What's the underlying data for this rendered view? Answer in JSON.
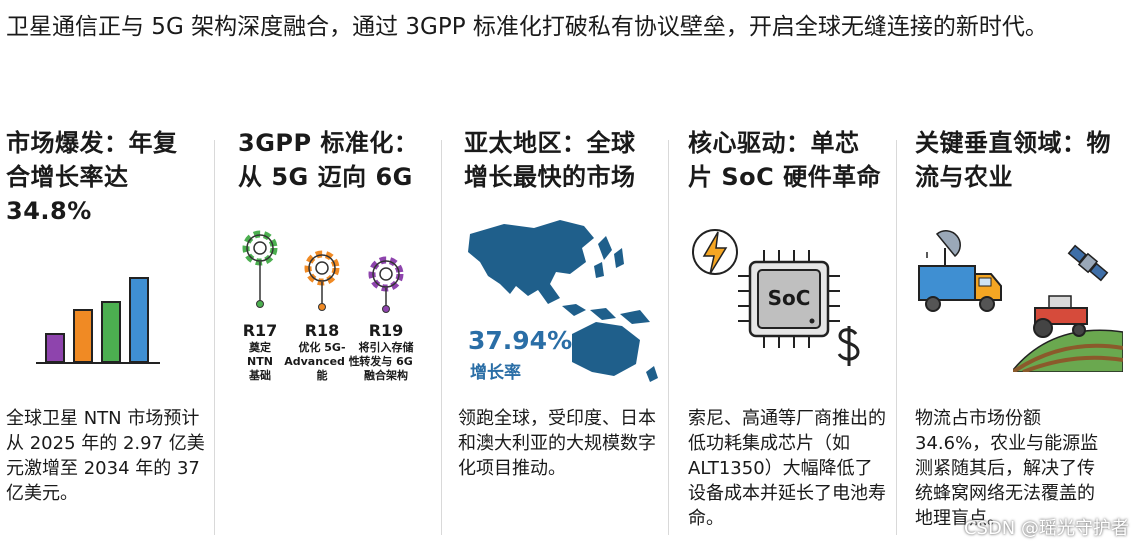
{
  "headline": "卫星通信正与 5G 架构深度融合，通过 3GPP 标准化打破私有协议壁垒，开启全球无缝连接的新时代。",
  "columns": [
    {
      "title": "市场爆发：年复合增长率达 34.8%",
      "text": "全球卫星 NTN 市场预计从 2025 年的 2.97 亿美元激增至 2034 年的 37 亿美元。"
    },
    {
      "title": "3GPP 标准化：从 5G 迈向 6G",
      "releases": [
        {
          "code": "R17",
          "desc": "奠定 NTN 基础",
          "color": "#4caf50"
        },
        {
          "code": "R18",
          "desc": "优化 5G-Advanced 性能",
          "color": "#f08a24"
        },
        {
          "code": "R19",
          "desc": "将引入存储转发与 6G 融合架构",
          "color": "#8e44ad"
        }
      ]
    },
    {
      "title": "亚太地区：全球增长最快的市场",
      "rate_value": "37.94%",
      "rate_label": "增长率",
      "text": "领跑全球，受印度、日本和澳大利亚的大规模数字化项目推动。"
    },
    {
      "title": "核心驱动：单芯片 SoC 硬件革命",
      "chip_label": "SoC",
      "text": "索尼、高通等厂商推出的低功耗集成芯片（如 ALT1350）大幅降低了设备成本并延长了电池寿命。"
    },
    {
      "title": "关键垂直领域：物流与农业",
      "text": "物流占市场份额 34.6%，农业与能源监测紧随其后，解决了传统蜂窝网络无法覆盖的地理盲点。"
    }
  ],
  "watermark": "CSDN @瑶光守护者",
  "colors": {
    "bar_purple": "#8e44ad",
    "bar_orange": "#f08a24",
    "bar_green": "#4caf50",
    "bar_blue": "#3f8fd2",
    "map_blue": "#1f5f8b"
  }
}
